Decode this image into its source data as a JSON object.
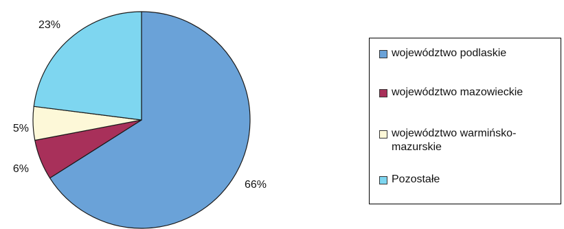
{
  "chart_data": {
    "type": "pie",
    "title": "",
    "slices": [
      {
        "label": "województwo podlaskie",
        "value": 66,
        "value_label": "66%",
        "color": "#6aa2d8"
      },
      {
        "label": "województwo mazowieckie",
        "value": 6,
        "value_label": "6%",
        "color": "#a8305a"
      },
      {
        "label": "województwo warmińsko-mazurskie",
        "value": 5,
        "value_label": "5%",
        "color": "#fdf8d8"
      },
      {
        "label": "Pozostałe",
        "value": 23,
        "value_label": "23%",
        "color": "#7ed6f0"
      }
    ],
    "legend_placement": "right",
    "edge_color": "#1a1a1a"
  }
}
